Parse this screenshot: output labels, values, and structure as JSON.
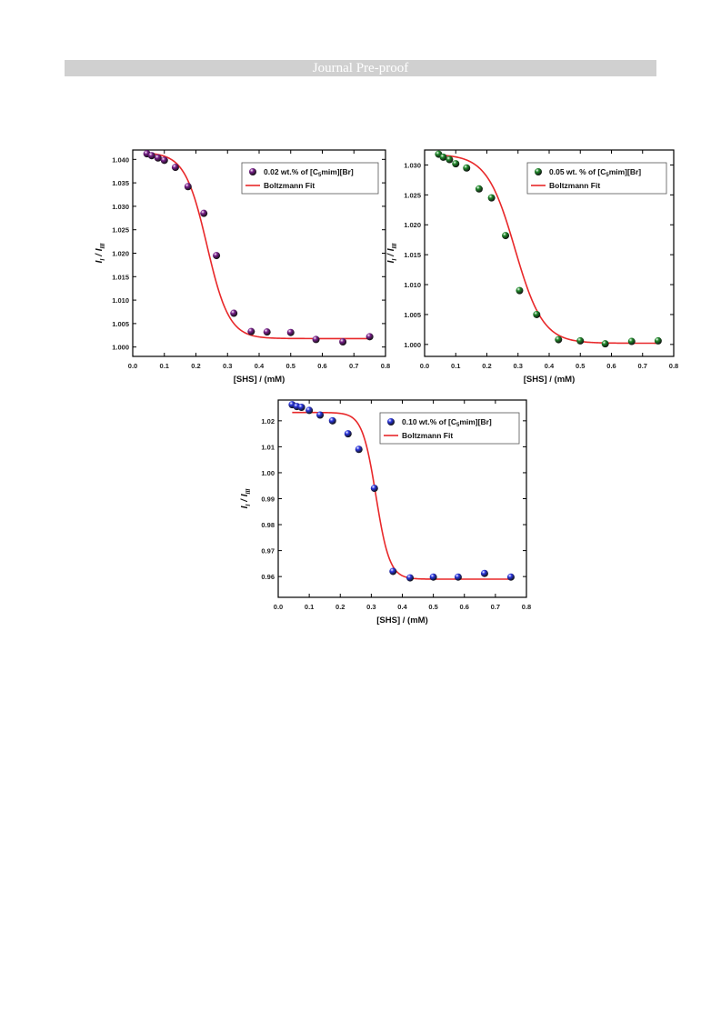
{
  "header": {
    "banner_text": "Journal Pre-proof"
  },
  "colors": {
    "fit_line": "#e8282a",
    "purple": "#7a1f8c",
    "green": "#1f8a2a",
    "blue": "#2a35e0"
  },
  "chart_data": [
    {
      "type": "scatter",
      "ylabel_main": "I",
      "ylabel_sub1": "I",
      "ylabel_sep": " / ",
      "ylabel_main2": "I",
      "ylabel_sub2": "III",
      "xlabel": "[SHS] / (mM)",
      "xlim": [
        0.0,
        0.8
      ],
      "ylim": [
        0.998,
        1.042
      ],
      "xticks": [
        0.0,
        0.1,
        0.2,
        0.3,
        0.4,
        0.5,
        0.6,
        0.7,
        0.8
      ],
      "yticks": [
        1.0,
        1.005,
        1.01,
        1.015,
        1.02,
        1.025,
        1.03,
        1.035,
        1.04
      ],
      "ydecimals": 3,
      "legend": {
        "series_pre": "0.02 wt.% of [C",
        "series_sub": "5",
        "series_post": "mim][Br]",
        "fit": "Boltzmann Fit"
      },
      "marker_color": "purple",
      "x": [
        0.045,
        0.06,
        0.08,
        0.1,
        0.135,
        0.175,
        0.225,
        0.265,
        0.32,
        0.375,
        0.425,
        0.5,
        0.58,
        0.665,
        0.75
      ],
      "y": [
        1.0412,
        1.0408,
        1.0403,
        1.0398,
        1.0383,
        1.0342,
        1.0285,
        1.0195,
        1.0072,
        1.0033,
        1.0032,
        1.0031,
        1.0016,
        1.0011,
        1.0022
      ],
      "fit": {
        "A1": 1.0415,
        "A2": 1.0018,
        "x0": 0.235,
        "dx": 0.035
      }
    },
    {
      "type": "scatter",
      "ylabel_main": "I",
      "ylabel_sub1": "I",
      "ylabel_sep": " / ",
      "ylabel_main2": "I",
      "ylabel_sub2": "III",
      "xlabel": "[SHS] / (mM)",
      "xlim": [
        0.0,
        0.8
      ],
      "ylim": [
        0.998,
        1.0325
      ],
      "xticks": [
        0.0,
        0.1,
        0.2,
        0.3,
        0.4,
        0.5,
        0.6,
        0.7,
        0.8
      ],
      "yticks": [
        1.0,
        1.005,
        1.01,
        1.015,
        1.02,
        1.025,
        1.03
      ],
      "ydecimals": 3,
      "legend": {
        "series_pre": "0.05 wt. % of [C",
        "series_sub": "5",
        "series_post": "mim][Br]",
        "fit": "Boltzmann Fit"
      },
      "marker_color": "green",
      "x": [
        0.045,
        0.06,
        0.08,
        0.1,
        0.135,
        0.175,
        0.215,
        0.26,
        0.305,
        0.36,
        0.43,
        0.5,
        0.58,
        0.665,
        0.75
      ],
      "y": [
        1.0318,
        1.0313,
        1.0309,
        1.0302,
        1.0295,
        1.026,
        1.0245,
        1.0182,
        1.009,
        1.005,
        1.0008,
        1.0006,
        1.0001,
        1.0005,
        1.0006
      ],
      "fit": {
        "A1": 1.0318,
        "A2": 1.0002,
        "x0": 0.29,
        "dx": 0.045
      }
    },
    {
      "type": "scatter",
      "ylabel_main": "I",
      "ylabel_sub1": "I",
      "ylabel_sep": " / ",
      "ylabel_main2": "I",
      "ylabel_sub2": "III",
      "xlabel": "[SHS] / (mM)",
      "xlim": [
        0.0,
        0.8
      ],
      "ylim": [
        0.952,
        1.028
      ],
      "xticks": [
        0.0,
        0.1,
        0.2,
        0.3,
        0.4,
        0.5,
        0.6,
        0.7,
        0.8
      ],
      "yticks": [
        0.96,
        0.97,
        0.98,
        0.99,
        1.0,
        1.01,
        1.02
      ],
      "ydecimals": 2,
      "legend": {
        "series_pre": "0.10 wt.% of [C",
        "series_sub": "5",
        "series_post": "mim][Br]",
        "fit": "Boltzmann Fit"
      },
      "marker_color": "blue",
      "x": [
        0.045,
        0.06,
        0.075,
        0.1,
        0.135,
        0.175,
        0.225,
        0.26,
        0.31,
        0.37,
        0.425,
        0.5,
        0.58,
        0.665,
        0.75
      ],
      "y": [
        1.0262,
        1.0255,
        1.0252,
        1.024,
        1.0222,
        1.02,
        1.015,
        1.009,
        0.994,
        0.962,
        0.9595,
        0.9598,
        0.9598,
        0.9612,
        0.9598
      ],
      "fit": {
        "A1": 1.0232,
        "A2": 0.959,
        "x0": 0.315,
        "dx": 0.022
      }
    }
  ]
}
